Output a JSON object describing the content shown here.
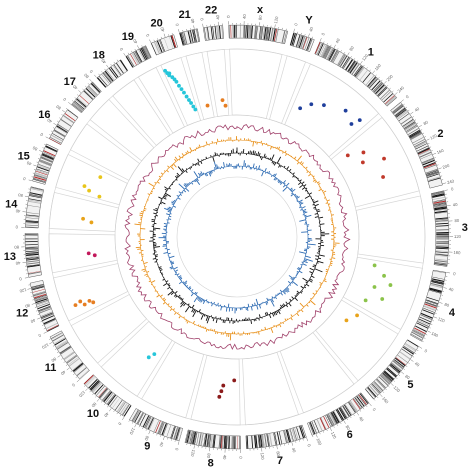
{
  "chart_data": {
    "type": "circos",
    "title": "",
    "grid": true,
    "chromosomes": [
      {
        "name": "1",
        "length": 249
      },
      {
        "name": "2",
        "length": 243
      },
      {
        "name": "3",
        "length": 198
      },
      {
        "name": "4",
        "length": 191
      },
      {
        "name": "5",
        "length": 181
      },
      {
        "name": "6",
        "length": 171
      },
      {
        "name": "7",
        "length": 159
      },
      {
        "name": "8",
        "length": 146
      },
      {
        "name": "9",
        "length": 141
      },
      {
        "name": "10",
        "length": 136
      },
      {
        "name": "11",
        "length": 135
      },
      {
        "name": "12",
        "length": 134
      },
      {
        "name": "13",
        "length": 115
      },
      {
        "name": "14",
        "length": 107
      },
      {
        "name": "15",
        "length": 103
      },
      {
        "name": "16",
        "length": 90
      },
      {
        "name": "17",
        "length": 81
      },
      {
        "name": "18",
        "length": 78
      },
      {
        "name": "19",
        "length": 59
      },
      {
        "name": "20",
        "length": 63
      },
      {
        "name": "21",
        "length": 48
      },
      {
        "name": "22",
        "length": 51
      },
      {
        "name": "x",
        "length": 155
      },
      {
        "name": "Y",
        "length": 57
      }
    ],
    "tick_labels": [
      "0",
      "40",
      "80",
      "120",
      "160",
      "200",
      "240"
    ],
    "tick_step": 40,
    "scatter_series": [
      {
        "color": "#1f3f9c",
        "points": [
          {
            "chr": "1",
            "pos": 30,
            "v": 0.3
          },
          {
            "chr": "1",
            "pos": 60,
            "v": 0.45
          },
          {
            "chr": "1",
            "pos": 100,
            "v": 0.55
          },
          {
            "chr": "1",
            "pos": 170,
            "v": 0.7
          },
          {
            "chr": "1",
            "pos": 215,
            "v": 0.6
          },
          {
            "chr": "1",
            "pos": 225,
            "v": 0.75
          }
        ]
      },
      {
        "color": "#c0392b",
        "points": [
          {
            "chr": "2",
            "pos": 30,
            "v": 0.2
          },
          {
            "chr": "2",
            "pos": 55,
            "v": 0.45
          },
          {
            "chr": "2",
            "pos": 85,
            "v": 0.35
          },
          {
            "chr": "2",
            "pos": 110,
            "v": 0.7
          },
          {
            "chr": "2",
            "pos": 165,
            "v": 0.55
          }
        ]
      },
      {
        "color": "#8bc34a",
        "points": [
          {
            "chr": "4",
            "pos": 20,
            "v": 0.25
          },
          {
            "chr": "4",
            "pos": 50,
            "v": 0.45
          },
          {
            "chr": "4",
            "pos": 75,
            "v": 0.6
          },
          {
            "chr": "4",
            "pos": 100,
            "v": 0.35
          },
          {
            "chr": "4",
            "pos": 130,
            "v": 0.55
          },
          {
            "chr": "4",
            "pos": 160,
            "v": 0.3
          }
        ]
      },
      {
        "color": "#e8a31a",
        "points": [
          {
            "chr": "5",
            "pos": 20,
            "v": 0.3
          },
          {
            "chr": "5",
            "pos": 60,
            "v": 0.2
          }
        ]
      },
      {
        "color": "#8b1a1a",
        "points": [
          {
            "chr": "8",
            "pos": 20,
            "v": 0.3
          },
          {
            "chr": "8",
            "pos": 60,
            "v": 0.4
          },
          {
            "chr": "8",
            "pos": 65,
            "v": 0.5
          },
          {
            "chr": "8",
            "pos": 70,
            "v": 0.6
          }
        ]
      },
      {
        "color": "#26c6da",
        "points": [
          {
            "chr": "10",
            "pos": 30,
            "v": 0.3
          },
          {
            "chr": "10",
            "pos": 40,
            "v": 0.4
          }
        ]
      },
      {
        "color": "#e67e22",
        "points": [
          {
            "chr": "12",
            "pos": 20,
            "v": 0.55
          },
          {
            "chr": "12",
            "pos": 25,
            "v": 0.7
          },
          {
            "chr": "12",
            "pos": 30,
            "v": 0.6
          },
          {
            "chr": "12",
            "pos": 35,
            "v": 0.85
          },
          {
            "chr": "12",
            "pos": 40,
            "v": 0.75
          }
        ]
      },
      {
        "color": "#c2185b",
        "points": [
          {
            "chr": "13",
            "pos": 35,
            "v": 0.3
          },
          {
            "chr": "13",
            "pos": 45,
            "v": 0.4
          }
        ]
      },
      {
        "color": "#e8a31a",
        "points": [
          {
            "chr": "14",
            "pos": 30,
            "v": 0.35
          },
          {
            "chr": "14",
            "pos": 40,
            "v": 0.5
          }
        ]
      },
      {
        "color": "#e8c51a",
        "points": [
          {
            "chr": "15",
            "pos": 10,
            "v": 0.3
          },
          {
            "chr": "15",
            "pos": 20,
            "v": 0.5
          },
          {
            "chr": "15",
            "pos": 30,
            "v": 0.6
          },
          {
            "chr": "15",
            "pos": 80,
            "v": 0.4
          }
        ]
      },
      {
        "color": "#26c6da",
        "points": [
          {
            "chr": "20",
            "pos": 5,
            "v": 0.95
          },
          {
            "chr": "20",
            "pos": 8,
            "v": 0.9
          },
          {
            "chr": "20",
            "pos": 11,
            "v": 0.85
          },
          {
            "chr": "20",
            "pos": 14,
            "v": 0.88
          },
          {
            "chr": "20",
            "pos": 18,
            "v": 0.8
          },
          {
            "chr": "20",
            "pos": 22,
            "v": 0.75
          },
          {
            "chr": "20",
            "pos": 25,
            "v": 0.7
          },
          {
            "chr": "20",
            "pos": 28,
            "v": 0.62
          },
          {
            "chr": "20",
            "pos": 32,
            "v": 0.55
          },
          {
            "chr": "20",
            "pos": 36,
            "v": 0.48
          },
          {
            "chr": "20",
            "pos": 40,
            "v": 0.4
          },
          {
            "chr": "20",
            "pos": 44,
            "v": 0.33
          },
          {
            "chr": "20",
            "pos": 48,
            "v": 0.27
          },
          {
            "chr": "20",
            "pos": 52,
            "v": 0.2
          },
          {
            "chr": "20",
            "pos": 56,
            "v": 0.14
          }
        ]
      },
      {
        "color": "#e67e22",
        "points": [
          {
            "chr": "21",
            "pos": 30,
            "v": 0.15
          },
          {
            "chr": "22",
            "pos": 30,
            "v": 0.2
          },
          {
            "chr": "22",
            "pos": 40,
            "v": 0.1
          }
        ]
      }
    ],
    "line_tracks": [
      {
        "name": "",
        "color": "#a0406a",
        "type": "line"
      },
      {
        "name": "",
        "color": "#e8901a",
        "type": "histogram"
      },
      {
        "name": "",
        "color": "#111111",
        "type": "histogram"
      },
      {
        "name": "",
        "color": "#2f6cb3",
        "type": "histogram"
      }
    ]
  }
}
